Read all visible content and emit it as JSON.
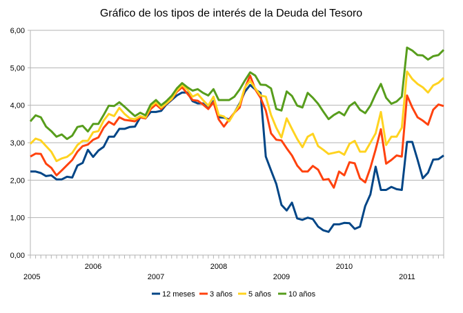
{
  "chart_data": {
    "type": "line",
    "title": "Gráfico de los tipos de interés de la Deuda del Tesoro",
    "xlabel": "",
    "ylabel": "",
    "ylim": [
      0,
      6
    ],
    "yticks": [
      "0,00",
      "1,00",
      "2,00",
      "3,00",
      "4,00",
      "5,00",
      "6,00"
    ],
    "x_start": "2005-01",
    "x_frequency": "monthly",
    "year_labels": [
      "2005",
      "2006",
      "2007",
      "2008",
      "2009",
      "2010",
      "2011"
    ],
    "grid": true,
    "legend_position": "bottom",
    "series": [
      {
        "name": "12 meses",
        "color": "#004586",
        "values": [
          2.23,
          2.23,
          2.19,
          2.11,
          2.13,
          2.02,
          2.02,
          2.09,
          2.07,
          2.39,
          2.46,
          2.81,
          2.62,
          2.79,
          2.89,
          3.16,
          3.16,
          3.37,
          3.37,
          3.42,
          3.43,
          3.68,
          3.65,
          3.82,
          3.82,
          3.85,
          4.02,
          4.14,
          4.26,
          4.34,
          4.34,
          4.11,
          4.05,
          4.05,
          3.91,
          4.11,
          3.68,
          3.67,
          3.62,
          3.8,
          4.05,
          4.36,
          4.54,
          4.42,
          4.33,
          2.63,
          2.26,
          1.9,
          1.34,
          1.19,
          1.4,
          0.98,
          0.94,
          1.0,
          0.96,
          0.76,
          0.66,
          0.62,
          0.82,
          0.82,
          0.86,
          0.85,
          0.7,
          0.76,
          1.31,
          1.62,
          2.36,
          1.74,
          1.74,
          1.82,
          1.76,
          1.74,
          3.02,
          3.02,
          2.55,
          2.05,
          2.2,
          2.55,
          2.56,
          2.66
        ]
      },
      {
        "name": "3 años",
        "color": "#ff420e",
        "values": [
          2.63,
          2.71,
          2.7,
          2.44,
          2.33,
          2.13,
          2.26,
          2.4,
          2.54,
          2.76,
          2.91,
          2.95,
          3.08,
          3.14,
          3.4,
          3.56,
          3.48,
          3.68,
          3.61,
          3.59,
          3.57,
          3.68,
          3.65,
          3.9,
          4.02,
          3.9,
          4.04,
          4.16,
          4.36,
          4.48,
          4.31,
          4.14,
          4.12,
          4.02,
          3.9,
          4.08,
          3.62,
          3.43,
          3.62,
          3.8,
          3.94,
          4.46,
          4.79,
          4.42,
          4.2,
          3.86,
          3.25,
          3.08,
          3.06,
          2.85,
          2.66,
          2.39,
          2.23,
          2.23,
          2.38,
          2.28,
          2.01,
          2.03,
          1.8,
          2.23,
          2.13,
          2.48,
          2.45,
          2.05,
          1.94,
          2.33,
          2.82,
          3.36,
          2.44,
          2.54,
          2.66,
          2.63,
          4.26,
          3.94,
          3.68,
          3.59,
          3.48,
          3.88,
          4.02,
          3.98
        ]
      },
      {
        "name": "5 años",
        "color": "#ffd320",
        "values": [
          2.97,
          3.11,
          3.06,
          2.91,
          2.76,
          2.51,
          2.58,
          2.62,
          2.73,
          2.94,
          3.05,
          3.05,
          3.28,
          3.31,
          3.59,
          3.77,
          3.71,
          3.93,
          3.77,
          3.65,
          3.63,
          3.71,
          3.67,
          3.96,
          4.08,
          3.94,
          4.05,
          4.17,
          4.39,
          4.54,
          4.42,
          4.23,
          4.3,
          4.14,
          3.99,
          4.23,
          3.74,
          3.7,
          3.57,
          3.8,
          4.02,
          4.48,
          4.65,
          4.45,
          4.26,
          4.23,
          3.74,
          3.4,
          3.14,
          3.65,
          3.37,
          3.1,
          2.88,
          3.16,
          3.24,
          2.91,
          2.81,
          2.7,
          2.73,
          2.76,
          2.68,
          2.97,
          3.05,
          2.76,
          2.76,
          3.0,
          3.25,
          3.82,
          2.94,
          3.16,
          3.16,
          3.4,
          4.9,
          4.7,
          4.57,
          4.48,
          4.34,
          4.53,
          4.6,
          4.73
        ]
      },
      {
        "name": "10 años",
        "color": "#579d1c",
        "values": [
          3.57,
          3.73,
          3.68,
          3.43,
          3.31,
          3.16,
          3.22,
          3.1,
          3.19,
          3.42,
          3.45,
          3.3,
          3.5,
          3.5,
          3.74,
          3.99,
          3.98,
          4.08,
          3.96,
          3.83,
          3.71,
          3.8,
          3.73,
          4.02,
          4.14,
          4.0,
          4.11,
          4.25,
          4.45,
          4.59,
          4.48,
          4.39,
          4.43,
          4.33,
          4.26,
          4.43,
          4.14,
          4.14,
          4.14,
          4.23,
          4.42,
          4.66,
          4.88,
          4.79,
          4.55,
          4.54,
          4.45,
          3.9,
          3.86,
          4.37,
          4.25,
          3.99,
          3.94,
          4.33,
          4.2,
          4.04,
          3.83,
          3.63,
          3.74,
          3.82,
          3.73,
          3.98,
          4.08,
          3.88,
          3.79,
          3.99,
          4.3,
          4.57,
          4.2,
          4.04,
          4.1,
          4.23,
          5.54,
          5.46,
          5.34,
          5.33,
          5.22,
          5.31,
          5.34,
          5.48
        ]
      }
    ]
  }
}
